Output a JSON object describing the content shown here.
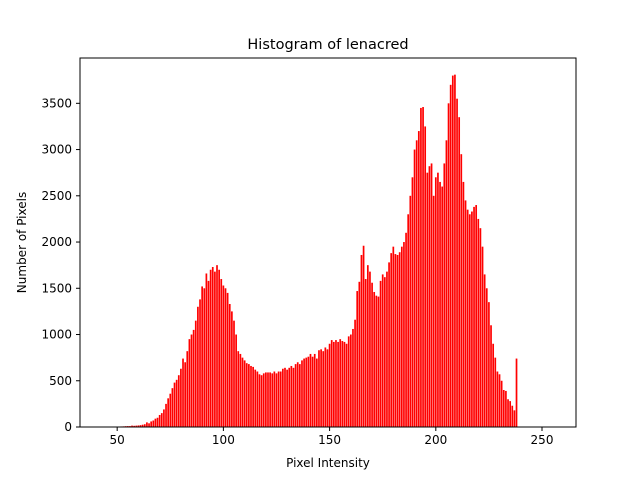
{
  "chart_data": {
    "type": "bar",
    "title": "Histogram of lenacred",
    "xlabel": "Pixel Intensity",
    "ylabel": "Number of Pixels",
    "xlim": [
      32.5,
      266
    ],
    "ylim": [
      0,
      3990
    ],
    "xticks": [
      50,
      100,
      150,
      200,
      250
    ],
    "yticks": [
      0,
      500,
      1000,
      1500,
      2000,
      2500,
      3000,
      3500
    ],
    "bar_color": "#ff0000",
    "grid": false,
    "legend": "none",
    "x_start": 41,
    "values": [
      1,
      1,
      1,
      2,
      2,
      3,
      2,
      4,
      5,
      5,
      5,
      6,
      7,
      9,
      10,
      10,
      15,
      13,
      15,
      17,
      20,
      25,
      30,
      50,
      40,
      60,
      70,
      90,
      100,
      130,
      150,
      190,
      250,
      310,
      360,
      420,
      480,
      510,
      560,
      630,
      740,
      700,
      820,
      950,
      1000,
      1050,
      1150,
      1300,
      1380,
      1520,
      1500,
      1660,
      1580,
      1700,
      1730,
      1680,
      1750,
      1700,
      1600,
      1530,
      1500,
      1450,
      1330,
      1250,
      1150,
      1000,
      820,
      790,
      750,
      720,
      690,
      680,
      660,
      650,
      620,
      600,
      570,
      560,
      580,
      590,
      590,
      590,
      580,
      600,
      580,
      600,
      600,
      630,
      640,
      620,
      640,
      660,
      640,
      680,
      700,
      680,
      720,
      740,
      750,
      760,
      790,
      760,
      790,
      740,
      830,
      840,
      820,
      860,
      840,
      900,
      940,
      920,
      940,
      920,
      950,
      930,
      920,
      900,
      980,
      1000,
      1060,
      1160,
      1470,
      1570,
      1860,
      1960,
      1600,
      1750,
      1680,
      1560,
      1460,
      1420,
      1410,
      1580,
      1650,
      1620,
      1680,
      1780,
      1880,
      1950,
      1870,
      1860,
      1890,
      1950,
      2000,
      2100,
      2300,
      2500,
      2700,
      3000,
      3100,
      3200,
      3450,
      3460,
      3250,
      2750,
      2820,
      2850,
      2500,
      2700,
      2750,
      2650,
      2600,
      2850,
      3100,
      3500,
      3700,
      3800,
      3810,
      3550,
      3350,
      2950,
      2650,
      2450,
      2350,
      2300,
      2330,
      2380,
      2400,
      2250,
      2150,
      1950,
      1650,
      1500,
      1350,
      1100,
      900,
      750,
      600,
      570,
      500,
      400,
      390,
      300,
      280,
      230,
      180,
      740
    ]
  }
}
